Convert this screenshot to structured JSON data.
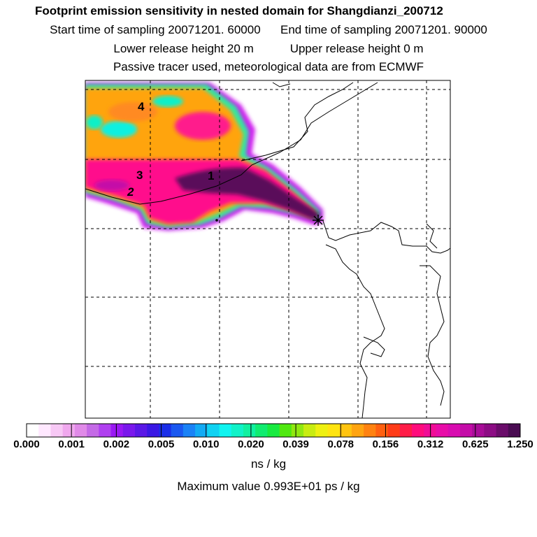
{
  "header": {
    "title": "Footprint emission sensitivity in nested domain for Shangdianzi_200712",
    "start_label": "Start time of sampling 20071201. 60000",
    "end_label": "End time of sampling 20071201. 90000",
    "lower_label": "Lower release height   20 m",
    "upper_label": "Upper release height    0 m",
    "tracer_note": "Passive tracer used, meteorological data are from ECMWF"
  },
  "map": {
    "point_labels": [
      "4",
      "3",
      "1",
      "2"
    ],
    "marker": "receptor-star"
  },
  "legend": {
    "tick_labels": [
      "0.000",
      "0.001",
      "0.002",
      "0.005",
      "0.010",
      "0.020",
      "0.039",
      "0.078",
      "0.156",
      "0.312",
      "0.625",
      "1.250"
    ],
    "unit": "ns / kg",
    "max_value": "Maximum value  0.993E+01 ps / kg",
    "colors": [
      "#ffffff",
      "#ffe8ff",
      "#f7c8f5",
      "#f0a8ee",
      "#e08ae8",
      "#c46ae6",
      "#b040f0",
      "#9a18f4",
      "#7a18ec",
      "#5a18e6",
      "#3a18e4",
      "#1a2ee8",
      "#1a58f0",
      "#1a82f6",
      "#12aaf4",
      "#10d2f2",
      "#10f4f0",
      "#10f2c8",
      "#10f0a0",
      "#10ec70",
      "#18ea40",
      "#50e810",
      "#90e810",
      "#c8ec10",
      "#eef010",
      "#ffe410",
      "#ffc410",
      "#ffa410",
      "#ff8210",
      "#ff6010",
      "#ff3c18",
      "#ff1c48",
      "#ff0c7c",
      "#f00c96",
      "#e80ca8",
      "#d80cb0",
      "#c40ca8",
      "#a80c98",
      "#8c0c84",
      "#6a0c6a",
      "#4a0c52"
    ]
  }
}
